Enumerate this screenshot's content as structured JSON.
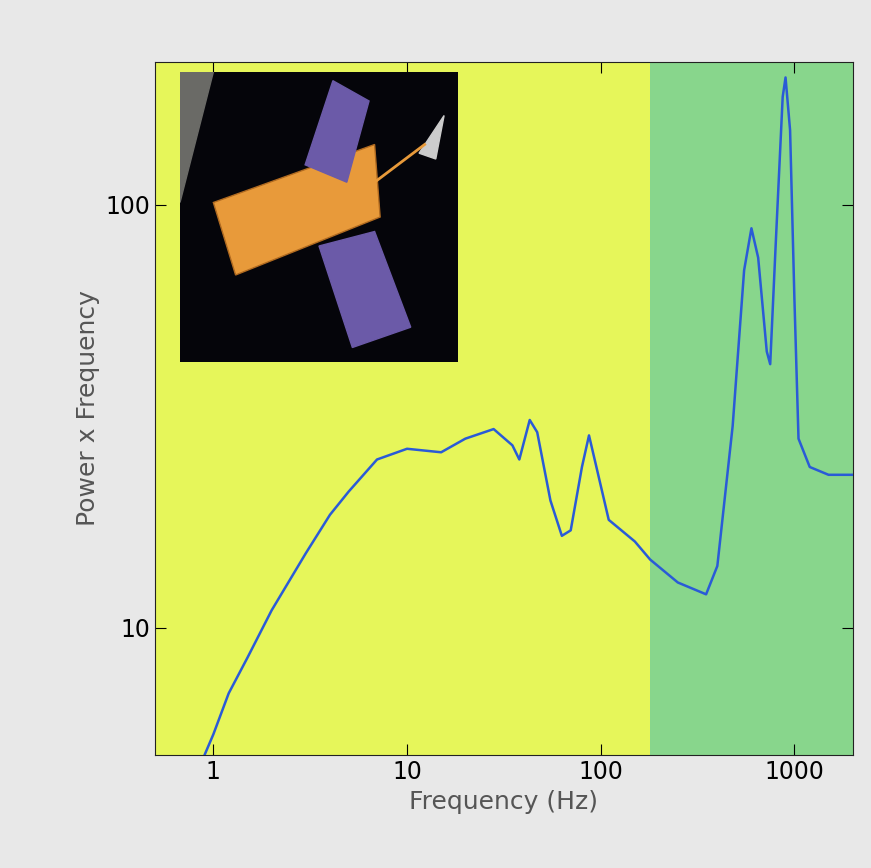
{
  "chart_data": {
    "type": "line",
    "x_label": "Frequency (Hz)",
    "y_label": "Power x Frequency",
    "log": true,
    "xlim": [
      0.5,
      2000
    ],
    "ylim": [
      5,
      218
    ],
    "xticks": [
      1,
      10,
      100,
      1000
    ],
    "yticks": [
      10,
      100
    ],
    "bands": [
      {
        "start": 0.5,
        "end": 180,
        "color": "#e6f65a"
      },
      {
        "start": 180,
        "end": 2000,
        "color": "#88d68c"
      }
    ],
    "series": [
      {
        "color": "#2a5bd7",
        "x": [
          0.9,
          1.0,
          1.2,
          1.5,
          2,
          3,
          4,
          5,
          7,
          10,
          15,
          20,
          28,
          35,
          38,
          43,
          47,
          55,
          63,
          70,
          80,
          87,
          95,
          110,
          150,
          180,
          250,
          350,
          400,
          480,
          550,
          600,
          650,
          720,
          750,
          800,
          870,
          900,
          950,
          1000,
          1050,
          1200,
          1500,
          2000
        ],
        "values": [
          5.0,
          5.6,
          7.0,
          8.5,
          11,
          15,
          18.5,
          21,
          25,
          26.5,
          26,
          28,
          29.5,
          27,
          25,
          31,
          29,
          20,
          16.5,
          17,
          24,
          28.5,
          24,
          18,
          16,
          14.5,
          12.8,
          12,
          14,
          30,
          70,
          88,
          75,
          45,
          42,
          80,
          180,
          200,
          150,
          60,
          28,
          24,
          23,
          23
        ]
      }
    ]
  }
}
